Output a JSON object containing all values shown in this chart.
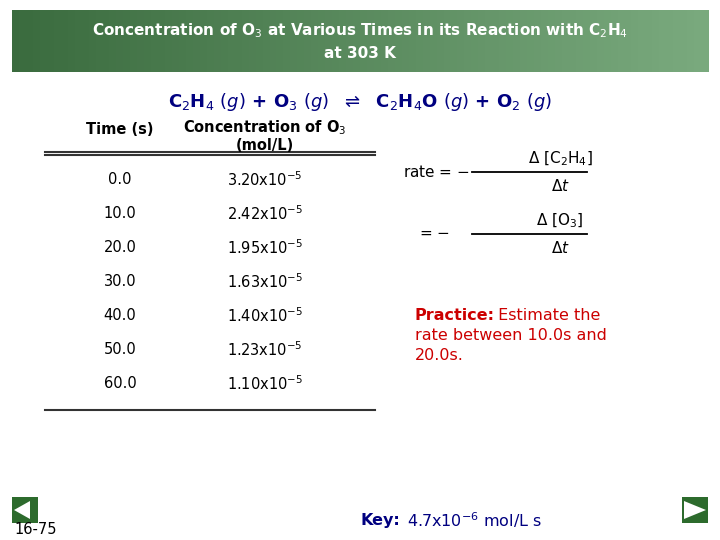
{
  "title_bg_color": "#4a7a4e",
  "title_text_color": "#ffffff",
  "main_bg": "#ffffff",
  "times": [
    "0.0",
    "10.0",
    "20.0",
    "30.0",
    "40.0",
    "50.0",
    "60.0"
  ],
  "conc_bases": [
    "3.20x10",
    "2.42x10",
    "1.95x10",
    "1.63x10",
    "1.40x10",
    "1.23x10",
    "1.10x10"
  ],
  "conc_exps": [
    "-5",
    "-5",
    "-5",
    "-5",
    "-5",
    "-5",
    "-5"
  ],
  "col1_header": "Time (s)",
  "col2_header_line1": "Concentration of O$_3$",
  "col2_header_line2": "(mol/L)",
  "equation_color": "#000080",
  "practice_label_color": "#cc0000",
  "practice_text_color": "#cc0000",
  "key_label_color": "#000080",
  "page_num": "16-75",
  "nav_color": "#2d6b2d",
  "rate_eq_color": "#000000",
  "table_line_color": "#333333",
  "table_text_color": "#000000",
  "header_text_color": "#000000"
}
